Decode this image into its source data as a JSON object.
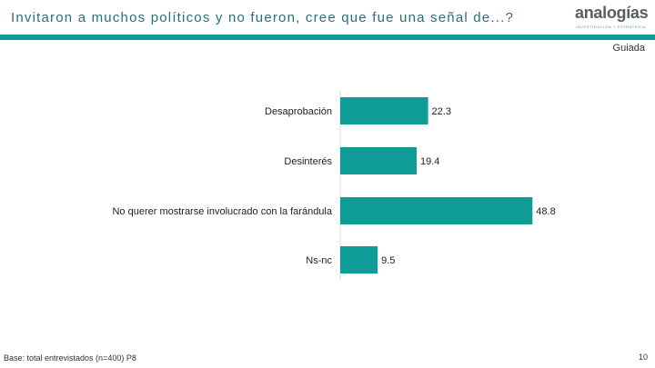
{
  "header": {
    "title": "Invitaron  a muchos políticos  y no fueron, cree que fue una señal de...?",
    "logo_word": "analogías",
    "logo_tagline": "INVESTIGACIÓN Y ESTRATEGIA",
    "mode_label": "Guiada"
  },
  "colors": {
    "bar": "#0f9b96",
    "rule": "#0f9b96",
    "title": "#2a6f77"
  },
  "chart_data": {
    "type": "bar",
    "orientation": "horizontal",
    "categories": [
      "Desaprobación",
      "Desinterés",
      "No querer mostrarse involucrado con la farándula",
      "Ns-nc"
    ],
    "values": [
      22.3,
      19.4,
      48.8,
      9.5
    ],
    "xlim": [
      0,
      50
    ],
    "title": "",
    "xlabel": "",
    "ylabel": "",
    "grid": false
  },
  "footer": {
    "note": "Base: total entrevistados (n=400) P8",
    "page_number": "10"
  }
}
